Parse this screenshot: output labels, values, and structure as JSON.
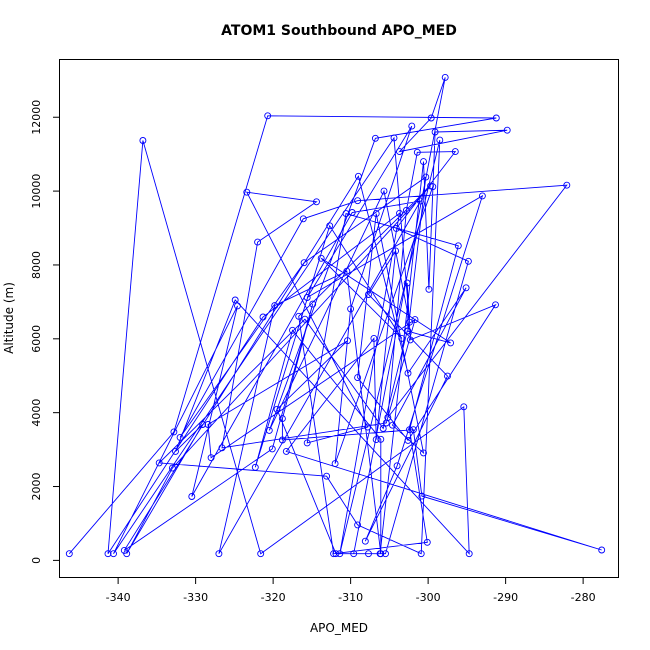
{
  "chart_data": {
    "type": "line",
    "title": "ATOM1 Southbound APO_MED",
    "xlabel": "APO_MED",
    "ylabel": "Altitude (m)",
    "xlim": [
      -347.5,
      -275.5
    ],
    "ylim": [
      -450,
      13550
    ],
    "xticks": [
      -340,
      -330,
      -320,
      -310,
      -300,
      -290,
      -280
    ],
    "yticks": [
      0,
      2000,
      4000,
      6000,
      8000,
      10000,
      12000
    ],
    "grid": false,
    "legend": "none",
    "series": [
      {
        "color": "#0000ff",
        "marker": "open-circle",
        "points": [
          [
            -346.3,
            180
          ],
          [
            -332.8,
            3480
          ],
          [
            -320.7,
            12040
          ],
          [
            -291.2,
            11980
          ],
          [
            -306.8,
            11430
          ],
          [
            -320.5,
            3520
          ],
          [
            -305.7,
            10000
          ],
          [
            -302.4,
            6450
          ],
          [
            -304.4,
            11440
          ],
          [
            -340.6,
            180
          ],
          [
            -324.6,
            6890
          ],
          [
            -330.5,
            1730
          ],
          [
            -309.8,
            9420
          ],
          [
            -301.0,
            9730
          ],
          [
            -327.0,
            180
          ],
          [
            -319.8,
            6900
          ],
          [
            -310.5,
            7830
          ],
          [
            -306.1,
            180
          ],
          [
            -306.1,
            3280
          ],
          [
            -317.5,
            6230
          ],
          [
            -322.3,
            2520
          ],
          [
            -312.7,
            9060
          ],
          [
            -303.4,
            6010
          ],
          [
            -313.8,
            8180
          ],
          [
            -297.1,
            5890
          ],
          [
            -302.7,
            6210
          ],
          [
            -305.8,
            3570
          ],
          [
            -315.9,
            6530
          ],
          [
            -334.7,
            2640
          ],
          [
            -313.1,
            2280
          ],
          [
            -309.1,
            960
          ],
          [
            -300.9,
            180
          ],
          [
            -298.5,
            11380
          ],
          [
            -311.4,
            180
          ],
          [
            -303.7,
            9400
          ],
          [
            -321.3,
            6590
          ],
          [
            -341.3,
            180
          ],
          [
            -336.8,
            11370
          ],
          [
            -321.6,
            180
          ],
          [
            -295.4,
            4160
          ],
          [
            -294.7,
            180
          ],
          [
            -324.9,
            7050
          ],
          [
            -332.6,
            2950
          ],
          [
            -329.1,
            3680
          ],
          [
            -338.9,
            180
          ],
          [
            -333.0,
            2500
          ],
          [
            -299.7,
            10140
          ],
          [
            -316.7,
            6610
          ],
          [
            -312.2,
            180
          ],
          [
            -300.1,
            490
          ],
          [
            -302.4,
            3540
          ],
          [
            -296.1,
            8520
          ],
          [
            -310.6,
            9390
          ],
          [
            -315.6,
            3180
          ],
          [
            -307.8,
            3610
          ],
          [
            -323.4,
            9970
          ],
          [
            -314.4,
            9710
          ],
          [
            -322.0,
            8620
          ],
          [
            -326.6,
            3050
          ],
          [
            -305.4,
            3720
          ],
          [
            -301.7,
            6520
          ],
          [
            -328.0,
            2780
          ],
          [
            -328.4,
            3680
          ],
          [
            -310.4,
            5950
          ],
          [
            -319.5,
            4090
          ],
          [
            -311.9,
            180
          ],
          [
            -306.2,
            180
          ],
          [
            -300.6,
            10800
          ],
          [
            -299.9,
            7340
          ],
          [
            -299.1,
            11600
          ],
          [
            -289.8,
            11650
          ],
          [
            -303.7,
            11070
          ],
          [
            -299.6,
            11980
          ],
          [
            -297.8,
            13080
          ],
          [
            -309.6,
            180
          ],
          [
            -307.7,
            180
          ],
          [
            -305.5,
            180
          ],
          [
            -294.8,
            8100
          ],
          [
            -304.1,
            8990
          ],
          [
            -296.5,
            11070
          ],
          [
            -301.4,
            11050
          ],
          [
            -302.8,
            9480
          ],
          [
            -305.2,
            3870
          ],
          [
            -282.1,
            10160
          ],
          [
            -309.1,
            9740
          ],
          [
            -316.1,
            9250
          ],
          [
            -332.0,
            3330
          ],
          [
            -316.0,
            8060
          ],
          [
            -300.3,
            10380
          ],
          [
            -302.6,
            6210
          ],
          [
            -302.7,
            7510
          ],
          [
            -302.3,
            5970
          ],
          [
            -291.3,
            6920
          ],
          [
            -302.6,
            3250
          ],
          [
            -309.1,
            4950
          ],
          [
            -306.7,
            9390
          ],
          [
            -300.6,
            2910
          ],
          [
            -304.6,
            3660
          ],
          [
            -295.1,
            7380
          ],
          [
            -302.6,
            5070
          ],
          [
            -309.0,
            10400
          ],
          [
            -339.2,
            270
          ],
          [
            -320.1,
            3020
          ],
          [
            -314.9,
            6940
          ],
          [
            -318.8,
            3840
          ],
          [
            -318.8,
            3260
          ],
          [
            -301.9,
            3540
          ],
          [
            -300.8,
            1740
          ],
          [
            -277.6,
            280
          ],
          [
            -318.3,
            2950
          ],
          [
            -307.0,
            6010
          ],
          [
            -306.7,
            3270
          ],
          [
            -304.2,
            8380
          ],
          [
            -307.7,
            7200
          ],
          [
            -297.5,
            4990
          ],
          [
            -308.1,
            520
          ],
          [
            -304.0,
            2560
          ],
          [
            -293.0,
            9870
          ],
          [
            -315.6,
            7120
          ],
          [
            -302.1,
            11760
          ],
          [
            -310.0,
            6810
          ],
          [
            -312.0,
            2620
          ],
          [
            -299.4,
            10120
          ]
        ]
      }
    ]
  }
}
